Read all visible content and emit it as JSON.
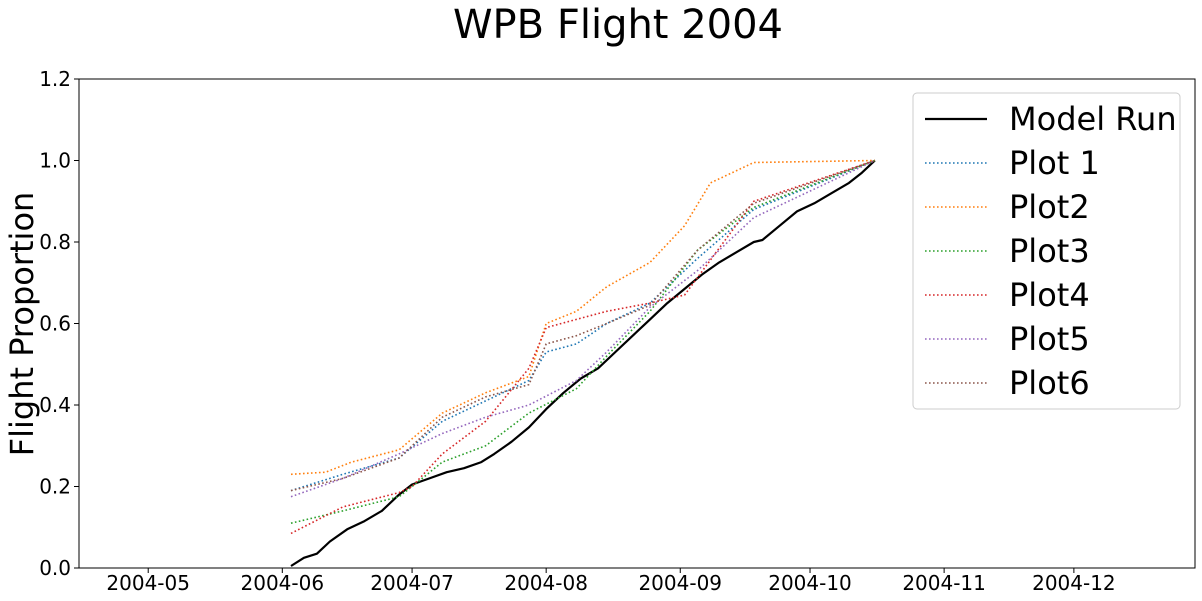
{
  "chart_data": {
    "type": "line",
    "title": "WPB Flight 2004",
    "xlabel": "",
    "ylabel": "Flight Proportion",
    "xlim": [
      "2004-04-15",
      "2004-12-29"
    ],
    "ylim": [
      0,
      1.2
    ],
    "x_ticks": [
      "2004-05",
      "2004-06",
      "2004-07",
      "2004-08",
      "2004-09",
      "2004-10",
      "2004-11",
      "2004-12"
    ],
    "x_tick_dates": [
      "2004-05-01",
      "2004-06-01",
      "2004-07-01",
      "2004-08-01",
      "2004-09-01",
      "2004-10-01",
      "2004-11-01",
      "2004-12-01"
    ],
    "y_ticks": [
      "0.0",
      "0.2",
      "0.4",
      "0.6",
      "0.8",
      "1.0",
      "1.2"
    ],
    "y_tick_values": [
      0,
      0.2,
      0.4,
      0.6,
      0.8,
      1.0,
      1.2
    ],
    "grid": false,
    "legend_position": "top-right",
    "series": [
      {
        "name": "Model Run",
        "color": "#000000",
        "style": "solid",
        "points": [
          [
            "2004-06-03",
            0.005
          ],
          [
            "2004-06-06",
            0.025
          ],
          [
            "2004-06-09",
            0.035
          ],
          [
            "2004-06-12",
            0.065
          ],
          [
            "2004-06-16",
            0.095
          ],
          [
            "2004-06-20",
            0.115
          ],
          [
            "2004-06-24",
            0.14
          ],
          [
            "2004-06-28",
            0.18
          ],
          [
            "2004-07-01",
            0.205
          ],
          [
            "2004-07-05",
            0.22
          ],
          [
            "2004-07-09",
            0.235
          ],
          [
            "2004-07-13",
            0.245
          ],
          [
            "2004-07-17",
            0.26
          ],
          [
            "2004-07-20",
            0.28
          ],
          [
            "2004-07-24",
            0.31
          ],
          [
            "2004-07-28",
            0.345
          ],
          [
            "2004-08-01",
            0.39
          ],
          [
            "2004-08-05",
            0.43
          ],
          [
            "2004-08-09",
            0.465
          ],
          [
            "2004-08-13",
            0.49
          ],
          [
            "2004-08-17",
            0.53
          ],
          [
            "2004-08-21",
            0.57
          ],
          [
            "2004-08-25",
            0.61
          ],
          [
            "2004-08-29",
            0.65
          ],
          [
            "2004-09-02",
            0.685
          ],
          [
            "2004-09-06",
            0.72
          ],
          [
            "2004-09-10",
            0.75
          ],
          [
            "2004-09-14",
            0.775
          ],
          [
            "2004-09-18",
            0.8
          ],
          [
            "2004-09-20",
            0.805
          ],
          [
            "2004-09-24",
            0.84
          ],
          [
            "2004-09-28",
            0.875
          ],
          [
            "2004-10-02",
            0.895
          ],
          [
            "2004-10-06",
            0.92
          ],
          [
            "2004-10-10",
            0.945
          ],
          [
            "2004-10-13",
            0.97
          ],
          [
            "2004-10-16",
            1.0
          ]
        ]
      },
      {
        "name": "Plot 1",
        "color": "#1f77b4",
        "style": "dotted",
        "points": [
          [
            "2004-06-03",
            0.19
          ],
          [
            "2004-06-15",
            0.23
          ],
          [
            "2004-06-28",
            0.27
          ],
          [
            "2004-07-08",
            0.36
          ],
          [
            "2004-07-18",
            0.41
          ],
          [
            "2004-07-28",
            0.46
          ],
          [
            "2004-08-01",
            0.53
          ],
          [
            "2004-08-08",
            0.55
          ],
          [
            "2004-08-15",
            0.6
          ],
          [
            "2004-08-25",
            0.65
          ],
          [
            "2004-09-05",
            0.76
          ],
          [
            "2004-09-18",
            0.88
          ],
          [
            "2004-10-16",
            1.0
          ]
        ]
      },
      {
        "name": "Plot2",
        "color": "#ff7f0e",
        "style": "dotted",
        "points": [
          [
            "2004-06-03",
            0.23
          ],
          [
            "2004-06-11",
            0.235
          ],
          [
            "2004-06-17",
            0.26
          ],
          [
            "2004-06-28",
            0.29
          ],
          [
            "2004-07-08",
            0.38
          ],
          [
            "2004-07-18",
            0.43
          ],
          [
            "2004-07-28",
            0.47
          ],
          [
            "2004-08-01",
            0.6
          ],
          [
            "2004-08-08",
            0.63
          ],
          [
            "2004-08-15",
            0.69
          ],
          [
            "2004-08-25",
            0.75
          ],
          [
            "2004-09-02",
            0.84
          ],
          [
            "2004-09-08",
            0.945
          ],
          [
            "2004-09-18",
            0.995
          ],
          [
            "2004-10-16",
            1.0
          ]
        ]
      },
      {
        "name": "Plot3",
        "color": "#2ca02c",
        "style": "dotted",
        "points": [
          [
            "2004-06-03",
            0.11
          ],
          [
            "2004-06-15",
            0.14
          ],
          [
            "2004-06-28",
            0.175
          ],
          [
            "2004-07-01",
            0.2
          ],
          [
            "2004-07-08",
            0.26
          ],
          [
            "2004-07-18",
            0.3
          ],
          [
            "2004-07-28",
            0.38
          ],
          [
            "2004-08-08",
            0.44
          ],
          [
            "2004-08-15",
            0.52
          ],
          [
            "2004-08-25",
            0.63
          ],
          [
            "2004-09-05",
            0.78
          ],
          [
            "2004-09-18",
            0.885
          ],
          [
            "2004-10-16",
            1.0
          ]
        ]
      },
      {
        "name": "Plot4",
        "color": "#d62728",
        "style": "dotted",
        "points": [
          [
            "2004-06-03",
            0.085
          ],
          [
            "2004-06-15",
            0.15
          ],
          [
            "2004-06-28",
            0.185
          ],
          [
            "2004-07-01",
            0.2
          ],
          [
            "2004-07-08",
            0.28
          ],
          [
            "2004-07-18",
            0.36
          ],
          [
            "2004-07-28",
            0.49
          ],
          [
            "2004-08-01",
            0.59
          ],
          [
            "2004-08-08",
            0.61
          ],
          [
            "2004-08-15",
            0.63
          ],
          [
            "2004-08-25",
            0.65
          ],
          [
            "2004-09-02",
            0.67
          ],
          [
            "2004-09-18",
            0.9
          ],
          [
            "2004-10-16",
            1.0
          ]
        ]
      },
      {
        "name": "Plot5",
        "color": "#9467bd",
        "style": "dotted",
        "points": [
          [
            "2004-06-03",
            0.175
          ],
          [
            "2004-06-15",
            0.22
          ],
          [
            "2004-06-28",
            0.28
          ],
          [
            "2004-07-08",
            0.33
          ],
          [
            "2004-07-18",
            0.37
          ],
          [
            "2004-07-28",
            0.4
          ],
          [
            "2004-08-08",
            0.46
          ],
          [
            "2004-08-15",
            0.53
          ],
          [
            "2004-08-25",
            0.64
          ],
          [
            "2004-09-05",
            0.73
          ],
          [
            "2004-09-18",
            0.86
          ],
          [
            "2004-10-16",
            1.0
          ]
        ]
      },
      {
        "name": "Plot6",
        "color": "#8c564b",
        "style": "dotted",
        "points": [
          [
            "2004-06-03",
            0.19
          ],
          [
            "2004-06-15",
            0.22
          ],
          [
            "2004-06-28",
            0.27
          ],
          [
            "2004-07-08",
            0.37
          ],
          [
            "2004-07-18",
            0.42
          ],
          [
            "2004-07-28",
            0.45
          ],
          [
            "2004-08-01",
            0.55
          ],
          [
            "2004-08-08",
            0.57
          ],
          [
            "2004-08-15",
            0.6
          ],
          [
            "2004-08-25",
            0.645
          ],
          [
            "2004-09-05",
            0.78
          ],
          [
            "2004-09-18",
            0.895
          ],
          [
            "2004-10-16",
            1.0
          ]
        ]
      }
    ]
  }
}
